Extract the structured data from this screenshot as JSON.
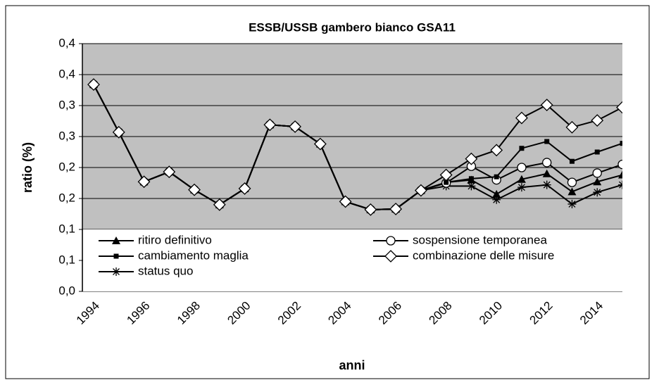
{
  "chart_data": {
    "type": "line",
    "title": "ESSB/USSB  gambero bianco  GSA11",
    "xlabel": "anni",
    "ylabel": "ratio (%)",
    "categories": [
      "1994",
      null,
      "1996",
      null,
      "1998",
      null,
      "2000",
      null,
      "2002",
      null,
      "2004",
      null,
      "2006",
      null,
      "2008",
      null,
      "2010",
      null,
      "2012",
      null,
      "2014",
      null
    ],
    "ylim": [
      0,
      0.4
    ],
    "yticks": [
      {
        "value": 0,
        "label": "0,0"
      },
      {
        "value": 0.05,
        "label": "0,1"
      },
      {
        "value": 0.1,
        "label": "0,1"
      },
      {
        "value": 0.15,
        "label": "0,2"
      },
      {
        "value": 0.2,
        "label": "0,2"
      },
      {
        "value": 0.25,
        "label": "0,3"
      },
      {
        "value": 0.3,
        "label": "0,3"
      },
      {
        "value": 0.35,
        "label": "0,4"
      },
      {
        "value": 0.4,
        "label": "0,4"
      }
    ],
    "grid": true,
    "legend": "bottom",
    "background": "#c0c0c0",
    "series": [
      {
        "name": "ritiro definitivo",
        "color": "#000000",
        "marker": "triangle",
        "values": [
          0.334,
          0.257,
          0.177,
          0.193,
          0.164,
          0.14,
          0.166,
          0.269,
          0.266,
          0.238,
          0.145,
          0.132,
          0.133,
          0.163,
          0.176,
          0.18,
          0.157,
          0.181,
          0.19,
          0.161,
          0.177,
          0.188
        ]
      },
      {
        "name": "sospensione temporanea",
        "color": "#000000",
        "marker": "circle",
        "values": [
          0.334,
          0.257,
          0.177,
          0.193,
          0.164,
          0.14,
          0.166,
          0.269,
          0.266,
          0.238,
          0.145,
          0.132,
          0.133,
          0.163,
          0.175,
          0.202,
          0.18,
          0.2,
          0.208,
          0.176,
          0.191,
          0.205
        ]
      },
      {
        "name": "cambiamento maglia",
        "color": "#000000",
        "marker": "square",
        "values": [
          0.334,
          0.257,
          0.177,
          0.193,
          0.164,
          0.14,
          0.166,
          0.269,
          0.266,
          0.238,
          0.145,
          0.132,
          0.133,
          0.163,
          0.176,
          0.182,
          0.185,
          0.231,
          0.242,
          0.21,
          0.225,
          0.239
        ]
      },
      {
        "name": "combinazione delle misure",
        "color": "#000000",
        "marker": "diamond",
        "values": [
          0.334,
          0.257,
          0.177,
          0.193,
          0.164,
          0.14,
          0.166,
          0.269,
          0.266,
          0.238,
          0.145,
          0.132,
          0.133,
          0.163,
          0.188,
          0.214,
          0.228,
          0.28,
          0.301,
          0.265,
          0.276,
          0.297
        ]
      },
      {
        "name": "status quo",
        "color": "#000000",
        "marker": "star",
        "values": [
          0.334,
          0.257,
          0.177,
          0.193,
          0.164,
          0.14,
          0.166,
          0.269,
          0.266,
          0.238,
          0.145,
          0.132,
          0.133,
          0.163,
          0.17,
          0.17,
          0.148,
          0.168,
          0.172,
          0.141,
          0.16,
          0.172
        ]
      }
    ]
  }
}
